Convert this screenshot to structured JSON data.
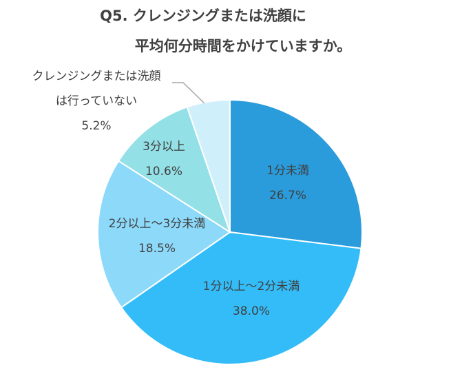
{
  "chart_data": {
    "type": "pie",
    "title_lines": [
      "Q5. クレンジングまたは洗顔に",
      "平均何分時間をかけていますか。"
    ],
    "slices": [
      {
        "label_lines": [
          "1分未満"
        ],
        "value_text": "26.7%",
        "value": 26.7,
        "color": "#2A9BDB",
        "label_color": "#ffffff"
      },
      {
        "label_lines": [
          "1分以上～2分未満"
        ],
        "value_text": "38.0%",
        "value": 38.0,
        "color": "#33BCF7",
        "label_color": "#404040"
      },
      {
        "label_lines": [
          "2分以上～3分未満"
        ],
        "value_text": "18.5%",
        "value": 18.5,
        "color": "#8DD9FA",
        "label_color": "#404040"
      },
      {
        "label_lines": [
          "3分以上"
        ],
        "value_text": "10.6%",
        "value": 10.6,
        "color": "#93E0E6",
        "label_color": "#404040"
      },
      {
        "label_lines": [
          "クレンジングまたは洗顔",
          "は行っていない"
        ],
        "value_text": "5.2%",
        "value": 5.2,
        "color": "#CFF0FB",
        "label_color": "#404040"
      }
    ],
    "start_angle": "top",
    "direction": "clockwise",
    "legend": "none"
  }
}
